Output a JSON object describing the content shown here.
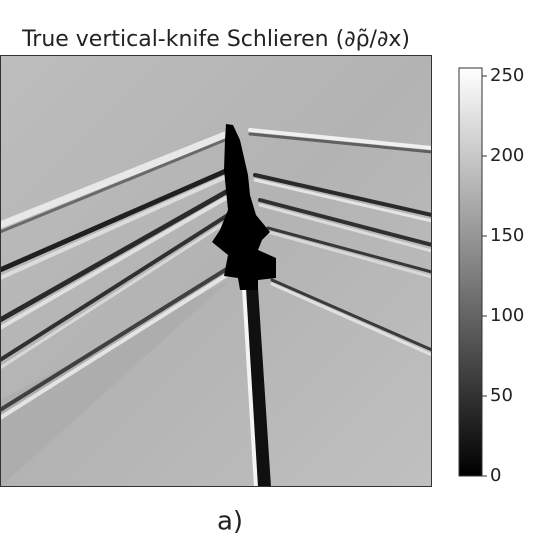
{
  "chart_data": {
    "type": "image",
    "title": "True vertical-knife Schlieren (∂ρ̃/∂x)",
    "caption": "a)",
    "colormap": "gray",
    "clim": [
      0,
      255
    ],
    "cticks": [
      0,
      50,
      100,
      150,
      200,
      250
    ]
  }
}
